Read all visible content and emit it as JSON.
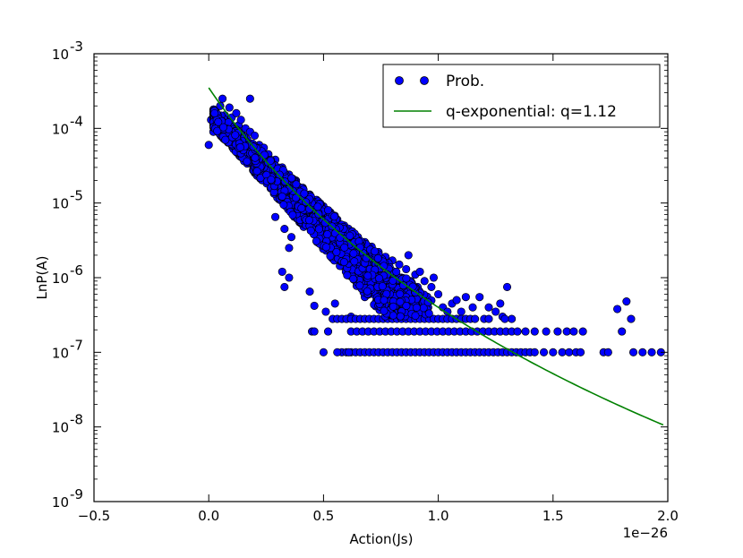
{
  "chart_data": {
    "type": "scatter",
    "title": "",
    "xlabel": "Action(Js)",
    "ylabel": "LnP(A)",
    "x_multiplier_label": "1e−26",
    "x_scale_exponent": -26,
    "xlim": [
      -0.5,
      2.0
    ],
    "ylim_log10": [
      -9,
      -3
    ],
    "yscale": "log",
    "grid": false,
    "legend_position": "top-right",
    "x_ticks": [
      {
        "value": -0.5,
        "label": "−0.5"
      },
      {
        "value": 0.0,
        "label": "0.0"
      },
      {
        "value": 0.5,
        "label": "0.5"
      },
      {
        "value": 1.0,
        "label": "1.0"
      },
      {
        "value": 1.5,
        "label": "1.5"
      },
      {
        "value": 2.0,
        "label": "2.0"
      }
    ],
    "y_ticks": [
      {
        "exp": -9,
        "base": "10",
        "sup": "-9"
      },
      {
        "exp": -8,
        "base": "10",
        "sup": "-8"
      },
      {
        "exp": -7,
        "base": "10",
        "sup": "-7"
      },
      {
        "exp": -6,
        "base": "10",
        "sup": "-6"
      },
      {
        "exp": -5,
        "base": "10",
        "sup": "-5"
      },
      {
        "exp": -4,
        "base": "10",
        "sup": "-4"
      },
      {
        "exp": -3,
        "base": "10",
        "sup": "-3"
      }
    ],
    "series": [
      {
        "name": "Prob.",
        "kind": "scatter",
        "color": "#0000ff",
        "edge_color": "#000000",
        "points": [
          [
            0.0,
            6e-05
          ],
          [
            0.01,
            0.00013
          ],
          [
            0.02,
            9e-05
          ],
          [
            0.03,
            0.00017
          ],
          [
            0.04,
            0.00012
          ],
          [
            0.05,
            0.0002
          ],
          [
            0.06,
            0.00025
          ],
          [
            0.07,
            0.00015
          ],
          [
            0.08,
            0.0001
          ],
          [
            0.09,
            0.00019
          ],
          [
            0.1,
            0.00014
          ],
          [
            0.11,
            8e-05
          ],
          [
            0.12,
            0.00016
          ],
          [
            0.13,
            0.00011
          ],
          [
            0.14,
            0.00013
          ],
          [
            0.15,
            7e-05
          ],
          [
            0.16,
            0.0001
          ],
          [
            0.17,
            6e-05
          ],
          [
            0.18,
            9e-05
          ],
          [
            0.19,
            5e-05
          ],
          [
            0.2,
            8e-05
          ],
          [
            0.21,
            4e-05
          ],
          [
            0.22,
            6e-05
          ],
          [
            0.23,
            3.5e-05
          ],
          [
            0.24,
            5.5e-05
          ],
          [
            0.25,
            2.5e-05
          ],
          [
            0.26,
            4.5e-05
          ],
          [
            0.27,
            3e-05
          ],
          [
            0.28,
            1.8e-05
          ],
          [
            0.29,
            3.8e-05
          ],
          [
            0.3,
            2.2e-05
          ],
          [
            0.31,
            1.4e-05
          ],
          [
            0.32,
            3e-05
          ],
          [
            0.33,
            1.9e-05
          ],
          [
            0.34,
            1.1e-05
          ],
          [
            0.35,
            2.4e-05
          ],
          [
            0.36,
            1.5e-05
          ],
          [
            0.37,
            9e-06
          ],
          [
            0.38,
            2e-05
          ],
          [
            0.39,
            1.2e-05
          ],
          [
            0.4,
            7.5e-06
          ],
          [
            0.41,
            1.6e-05
          ],
          [
            0.42,
            1e-05
          ],
          [
            0.43,
            6e-06
          ],
          [
            0.44,
            1.3e-05
          ],
          [
            0.45,
            8e-06
          ],
          [
            0.46,
            5e-06
          ],
          [
            0.47,
            1.1e-05
          ],
          [
            0.48,
            6.5e-06
          ],
          [
            0.49,
            4e-06
          ],
          [
            0.5,
            9e-06
          ],
          [
            0.51,
            5.5e-06
          ],
          [
            0.52,
            3.5e-06
          ],
          [
            0.53,
            7.5e-06
          ],
          [
            0.54,
            4.5e-06
          ],
          [
            0.55,
            3e-06
          ],
          [
            0.56,
            6e-06
          ],
          [
            0.57,
            3.8e-06
          ],
          [
            0.58,
            2.5e-06
          ],
          [
            0.59,
            5e-06
          ],
          [
            0.6,
            3.2e-06
          ],
          [
            0.61,
            2e-06
          ],
          [
            0.62,
            4.2e-06
          ],
          [
            0.63,
            2.7e-06
          ],
          [
            0.64,
            1.7e-06
          ],
          [
            0.65,
            3.5e-06
          ],
          [
            0.66,
            2.2e-06
          ],
          [
            0.67,
            1.5e-06
          ],
          [
            0.68,
            3e-06
          ],
          [
            0.69,
            1.9e-06
          ],
          [
            0.7,
            1.3e-06
          ],
          [
            0.71,
            2.6e-06
          ],
          [
            0.72,
            1.7e-06
          ],
          [
            0.73,
            1.1e-06
          ],
          [
            0.74,
            2.2e-06
          ],
          [
            0.75,
            1.5e-06
          ],
          [
            0.76,
            9.5e-07
          ],
          [
            0.77,
            1.9e-06
          ],
          [
            0.78,
            1.3e-06
          ],
          [
            0.79,
            8.5e-07
          ],
          [
            0.8,
            1.7e-06
          ],
          [
            0.81,
            1.1e-06
          ],
          [
            0.82,
            7.5e-07
          ],
          [
            0.83,
            1.5e-06
          ],
          [
            0.84,
            1e-06
          ],
          [
            0.85,
            6.5e-07
          ],
          [
            0.86,
            1.3e-06
          ],
          [
            0.87,
            2e-06
          ],
          [
            0.88,
            9e-07
          ],
          [
            0.89,
            5.5e-07
          ],
          [
            0.9,
            1.1e-06
          ],
          [
            0.91,
            7.5e-07
          ],
          [
            0.92,
            1.2e-06
          ],
          [
            0.93,
            6e-07
          ],
          [
            0.94,
            9e-07
          ],
          [
            0.95,
            5e-07
          ],
          [
            0.97,
            7.5e-07
          ],
          [
            0.98,
            1e-06
          ],
          [
            1.0,
            6e-07
          ],
          [
            1.02,
            4e-07
          ],
          [
            1.04,
            3.5e-07
          ],
          [
            1.06,
            4.5e-07
          ],
          [
            1.08,
            5e-07
          ],
          [
            1.1,
            3.5e-07
          ],
          [
            1.12,
            5.5e-07
          ],
          [
            1.15,
            4e-07
          ],
          [
            1.18,
            5.5e-07
          ],
          [
            1.2,
            2.8e-07
          ],
          [
            1.22,
            4e-07
          ],
          [
            1.25,
            3.5e-07
          ],
          [
            1.28,
            3e-07
          ],
          [
            1.3,
            7.5e-07
          ],
          [
            1.32,
            2.8e-07
          ],
          [
            0.18,
            0.00025
          ],
          [
            0.29,
            6.5e-06
          ],
          [
            0.33,
            4.5e-06
          ],
          [
            0.36,
            3.5e-06
          ],
          [
            0.35,
            2.5e-06
          ],
          [
            0.32,
            1.2e-06
          ],
          [
            0.35,
            1e-06
          ],
          [
            0.33,
            7.5e-07
          ],
          [
            0.44,
            6.5e-07
          ],
          [
            0.46,
            4.2e-07
          ],
          [
            0.51,
            3.5e-07
          ],
          [
            0.55,
            4.5e-07
          ],
          [
            0.62,
            3e-07
          ],
          [
            0.45,
            1.9e-07
          ],
          [
            0.46,
            1.9e-07
          ],
          [
            0.52,
            1.9e-07
          ],
          [
            0.5,
            1e-07
          ],
          [
            0.6,
            2.8e-07
          ],
          [
            0.68,
            5.5e-07
          ],
          [
            0.74,
            5e-07
          ],
          [
            0.8,
            3.5e-07
          ],
          [
            0.85,
            3e-07
          ],
          [
            0.91,
            3.5e-07
          ],
          [
            1.78,
            3.8e-07
          ],
          [
            1.82,
            4.8e-07
          ],
          [
            1.84,
            2.8e-07
          ]
        ],
        "bands": [
          {
            "y": 2.8e-07,
            "xmin": 0.54,
            "xmax": 1.17,
            "step": 0.02
          },
          {
            "y": 1.9e-07,
            "xmin": 0.62,
            "xmax": 1.36,
            "step": 0.025
          },
          {
            "y": 1e-07,
            "xmin": 0.58,
            "xmax": 1.42,
            "step": 0.02
          }
        ],
        "extra_points": [
          [
            0.56,
            1e-07
          ],
          [
            0.61,
            1e-07
          ],
          [
            1.46,
            1e-07
          ],
          [
            1.5,
            1e-07
          ],
          [
            1.54,
            1e-07
          ],
          [
            1.57,
            1e-07
          ],
          [
            1.6,
            1e-07
          ],
          [
            1.62,
            1e-07
          ],
          [
            1.72,
            1e-07
          ],
          [
            1.74,
            1e-07
          ],
          [
            1.85,
            1e-07
          ],
          [
            1.89,
            1e-07
          ],
          [
            1.93,
            1e-07
          ],
          [
            1.97,
            1e-07
          ],
          [
            1.38,
            1.9e-07
          ],
          [
            1.42,
            1.9e-07
          ],
          [
            1.47,
            1.9e-07
          ],
          [
            1.52,
            1.9e-07
          ],
          [
            1.56,
            1.9e-07
          ],
          [
            1.59,
            1.9e-07
          ],
          [
            1.63,
            1.9e-07
          ],
          [
            1.8,
            1.9e-07
          ],
          [
            1.22,
            2.8e-07
          ],
          [
            1.29,
            2.8e-07
          ],
          [
            1.27,
            4.5e-07
          ]
        ]
      },
      {
        "name": "q-exponential: q=1.12",
        "kind": "line",
        "color": "#008000",
        "q": 1.12,
        "x_range": [
          0.0,
          1.98
        ],
        "anchor_points": [
          [
            0.0,
            0.00035
          ],
          [
            0.5,
            9e-06
          ],
          [
            1.0,
            4e-07
          ],
          [
            1.25,
            1e-07
          ],
          [
            1.98,
            7.5e-09
          ]
        ]
      }
    ]
  }
}
